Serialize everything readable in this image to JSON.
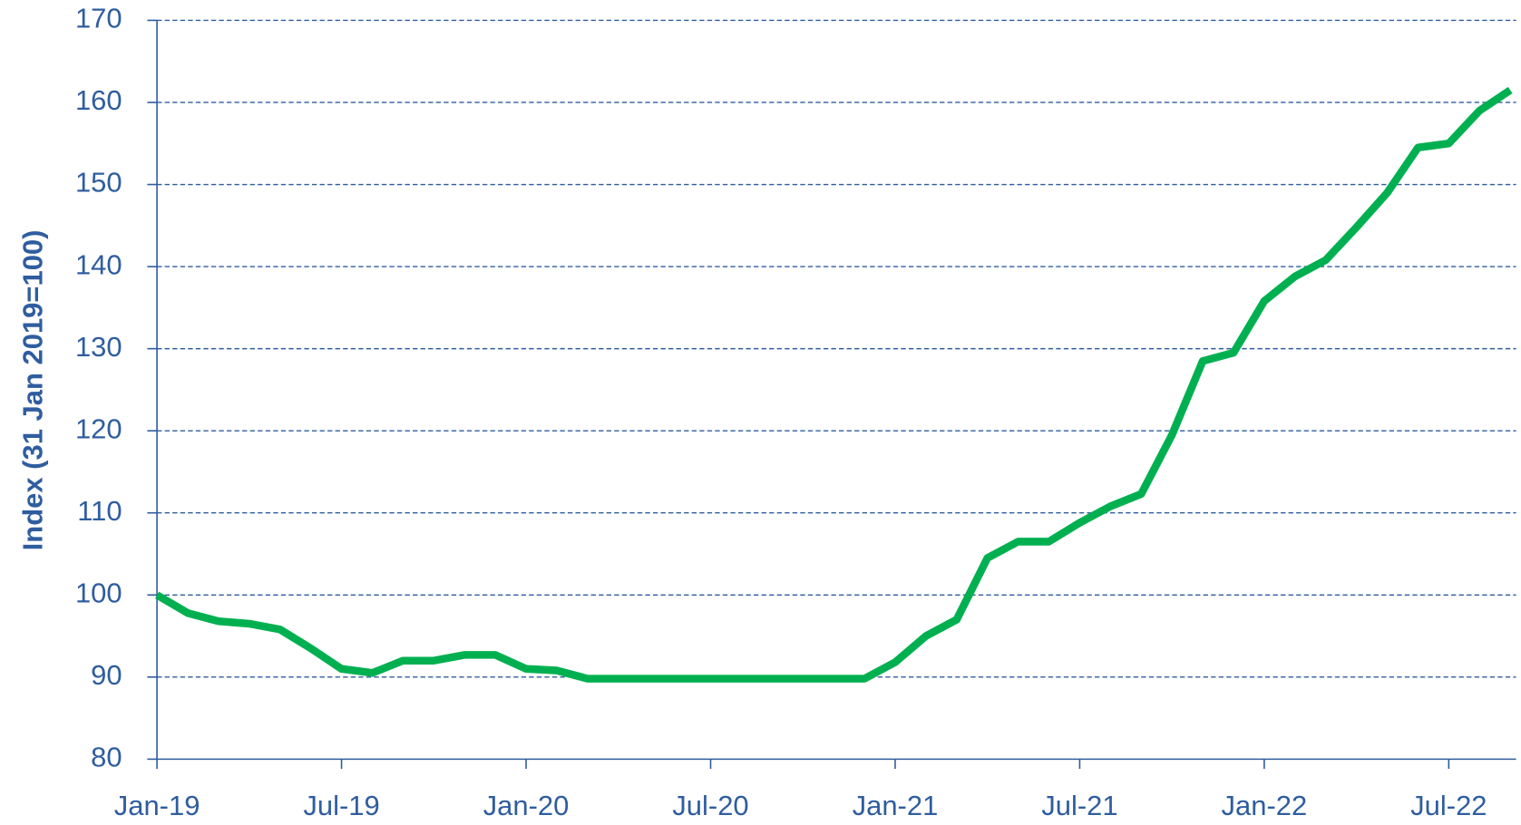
{
  "chart_data": {
    "type": "line",
    "y_label": "Index (31 Jan 2019=100)",
    "categories": [
      "Jan-19",
      null,
      null,
      null,
      null,
      null,
      "Jul-19",
      null,
      null,
      null,
      null,
      null,
      "Jan-20",
      null,
      null,
      null,
      null,
      null,
      "Jul-20",
      null,
      null,
      null,
      null,
      null,
      "Jan-21",
      null,
      null,
      null,
      null,
      null,
      "Jul-21",
      null,
      null,
      null,
      null,
      null,
      "Jan-22",
      null,
      null,
      null,
      null,
      null,
      "Jul-22",
      null,
      null
    ],
    "series": [
      {
        "color": "#00b050",
        "values": [
          100,
          97.8,
          96.8,
          96.5,
          95.8,
          93.5,
          91,
          90.5,
          92,
          92,
          92.7,
          92.7,
          91,
          90.8,
          89.8,
          89.8,
          89.8,
          89.8,
          89.8,
          89.8,
          89.8,
          89.8,
          89.8,
          89.8,
          91.8,
          95,
          97,
          104.5,
          106.5,
          106.5,
          108.8,
          110.8,
          112.3,
          119.5,
          128.5,
          129.5,
          135.8,
          138.8,
          140.8,
          144.8,
          149,
          154.5,
          155,
          159,
          161.5
        ]
      }
    ],
    "ylim": [
      80,
      170
    ],
    "yticks": [
      80,
      90,
      100,
      110,
      120,
      130,
      140,
      150,
      160,
      170
    ],
    "grid": true,
    "grid_color": "#2f5d9f",
    "axis_color": "#2f5d9f"
  }
}
